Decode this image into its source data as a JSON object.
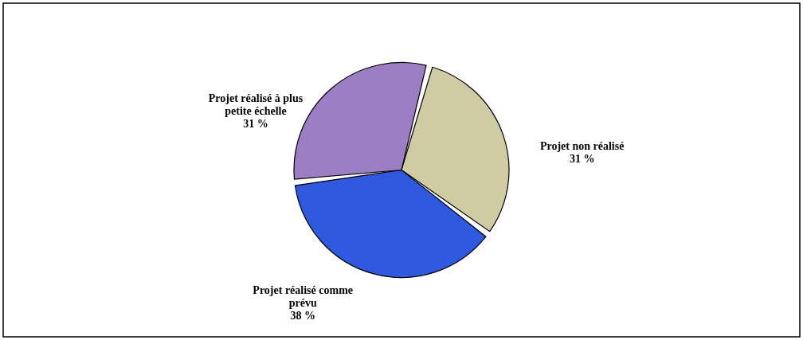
{
  "chart_data": {
    "type": "pie",
    "categories": [
      "Projet non réalisé",
      "Projet réalisé comme\nprévu",
      "Projet réalisé à plus\npetite échelle"
    ],
    "values": [
      31,
      38,
      31
    ],
    "colors": [
      "#cfcca4",
      "#2f5ae0",
      "#9b7ec4"
    ],
    "value_labels": [
      "31 %",
      "38 %",
      "31 %"
    ]
  }
}
